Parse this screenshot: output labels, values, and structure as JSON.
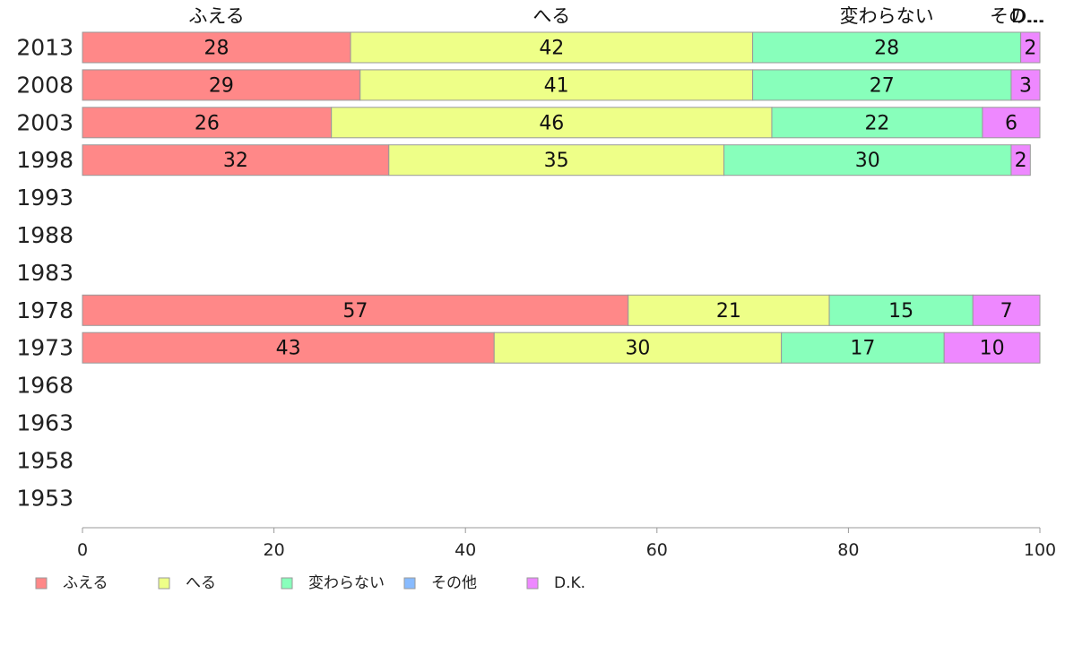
{
  "chart_data": {
    "type": "bar",
    "orientation": "horizontal",
    "stacked": true,
    "categories": [
      "2013",
      "2008",
      "2003",
      "1998",
      "1993",
      "1988",
      "1983",
      "1978",
      "1973",
      "1968",
      "1963",
      "1958",
      "1953"
    ],
    "series": [
      {
        "name": "ふえる",
        "color": "#ff8888",
        "values": [
          28,
          29,
          26,
          32,
          null,
          null,
          null,
          57,
          43,
          null,
          null,
          null,
          null
        ]
      },
      {
        "name": "へる",
        "color": "#eeff88",
        "values": [
          42,
          41,
          46,
          35,
          null,
          null,
          null,
          21,
          30,
          null,
          null,
          null,
          null
        ]
      },
      {
        "name": "変わらない",
        "color": "#88ffbb",
        "values": [
          28,
          27,
          22,
          30,
          null,
          null,
          null,
          15,
          17,
          null,
          null,
          null,
          null
        ]
      },
      {
        "name": "その他",
        "color": "#88bbff",
        "values": [
          0,
          0,
          0,
          0,
          null,
          null,
          null,
          0,
          0,
          null,
          null,
          null,
          null
        ]
      },
      {
        "name": "D.K.",
        "color": "#ee88ff",
        "values": [
          2,
          3,
          6,
          2,
          null,
          null,
          null,
          7,
          10,
          null,
          null,
          null,
          null
        ]
      }
    ],
    "top_labels": [
      "ふえる",
      "へる",
      "変わらない",
      "その...",
      "D..."
    ],
    "xlim": [
      0,
      100
    ],
    "x_ticks": [
      0,
      20,
      40,
      60,
      80,
      100
    ],
    "legend_position": "bottom-left",
    "grid": false
  }
}
